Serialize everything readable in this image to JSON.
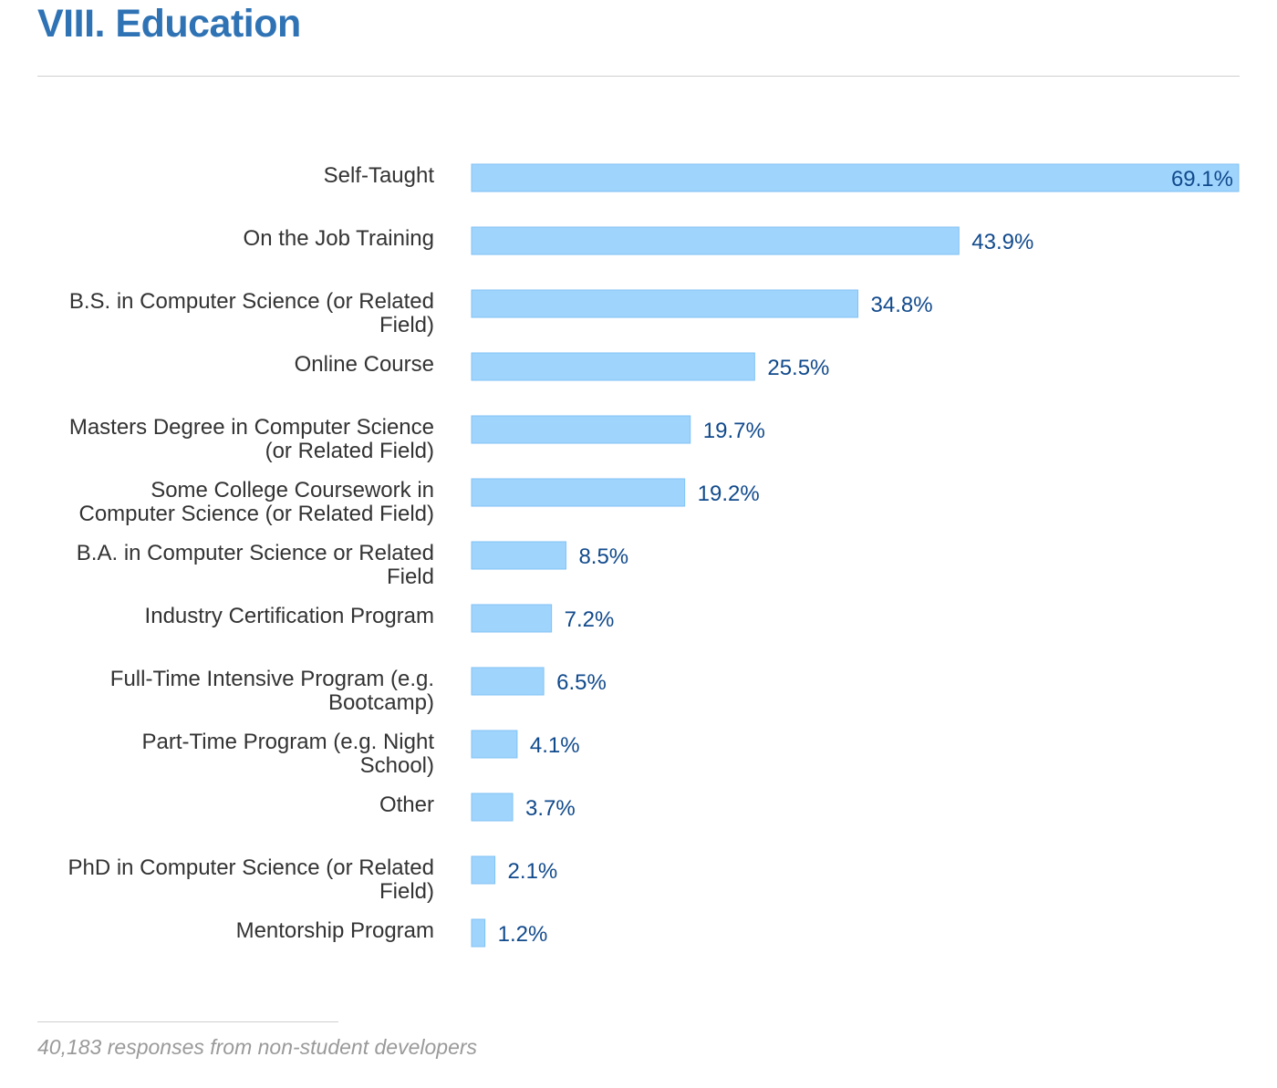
{
  "header": {
    "title": "VIII. Education"
  },
  "footnote": "40,183 responses from non-student developers",
  "colors": {
    "title": "#2f73b5",
    "bar": "#9fd4fd",
    "value_label": "#114a8c"
  },
  "chart_data": {
    "type": "bar",
    "orientation": "horizontal",
    "categories": [
      "Self-Taught",
      "On the Job Training",
      "B.S. in Computer Science (or Related Field)",
      "Online Course",
      "Masters Degree in Computer Science (or Related Field)",
      "Some College Coursework in Computer Science (or Related Field)",
      "B.A. in Computer Science or Related Field",
      "Industry Certification Program",
      "Full-Time Intensive Program (e.g. Bootcamp)",
      "Part-Time Program (e.g. Night School)",
      "Other",
      "PhD in Computer Science (or Related Field)",
      "Mentorship Program"
    ],
    "values": [
      69.1,
      43.9,
      34.8,
      25.5,
      19.7,
      19.2,
      8.5,
      7.2,
      6.5,
      4.1,
      3.7,
      2.1,
      1.2
    ],
    "value_labels": [
      "69.1%",
      "43.9%",
      "34.8%",
      "25.5%",
      "19.7%",
      "19.2%",
      "8.5%",
      "7.2%",
      "6.5%",
      "4.1%",
      "3.7%",
      "2.1%",
      "1.2%"
    ],
    "label_lines": [
      [
        "Self-Taught"
      ],
      [
        "On the Job Training"
      ],
      [
        "B.S. in Computer Science (or Related",
        "Field)"
      ],
      [
        "Online Course"
      ],
      [
        "Masters Degree in Computer Science",
        "(or Related Field)"
      ],
      [
        "Some College Coursework in",
        "Computer Science (or Related Field)"
      ],
      [
        "B.A. in Computer Science or Related",
        "Field"
      ],
      [
        "Industry Certification Program"
      ],
      [
        "Full-Time Intensive Program (e.g.",
        "Bootcamp)"
      ],
      [
        "Part-Time Program (e.g. Night",
        "School)"
      ],
      [
        "Other"
      ],
      [
        "PhD in Computer Science (or Related",
        "Field)"
      ],
      [
        "Mentorship Program"
      ]
    ],
    "unit": "%",
    "xlim": [
      0,
      69.1
    ],
    "grid": false,
    "legend": "none"
  }
}
